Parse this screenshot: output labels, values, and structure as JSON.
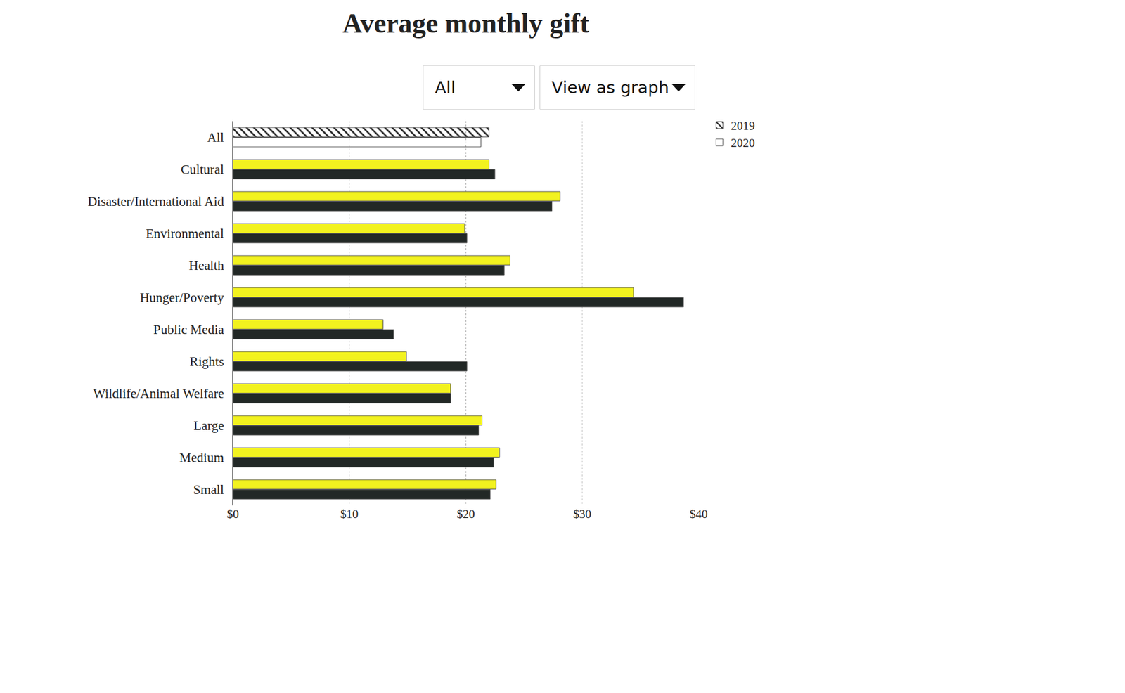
{
  "controls": [
    "All",
    "View as graph"
  ],
  "chart_data": {
    "type": "bar",
    "title": "Average monthly gift",
    "orientation": "horizontal",
    "categories": [
      "All",
      "Cultural",
      "Disaster/International Aid",
      "Environmental",
      "Health",
      "Hunger/Poverty",
      "Public Media",
      "Rights",
      "Wildlife/Animal Welfare",
      "Large",
      "Medium",
      "Small"
    ],
    "series": [
      {
        "name": "2019",
        "color": "#f2f21f",
        "values": [
          22.0,
          22.0,
          28.1,
          19.9,
          23.8,
          34.4,
          12.9,
          14.9,
          18.7,
          21.4,
          22.9,
          22.6
        ]
      },
      {
        "name": "2020",
        "color": "#222826",
        "values": [
          21.3,
          22.5,
          27.4,
          20.1,
          23.3,
          38.7,
          13.8,
          20.1,
          18.7,
          21.1,
          22.4,
          22.1
        ]
      }
    ],
    "xlim": [
      0,
      40
    ],
    "xticks": [
      {
        "value": 0,
        "label": "$0"
      },
      {
        "value": 10,
        "label": "$10"
      },
      {
        "value": 20,
        "label": "$20"
      },
      {
        "value": 30,
        "label": "$30"
      },
      {
        "value": 40,
        "label": "$40"
      }
    ],
    "grid": true,
    "legend": "top right",
    "data_labels": false
  }
}
